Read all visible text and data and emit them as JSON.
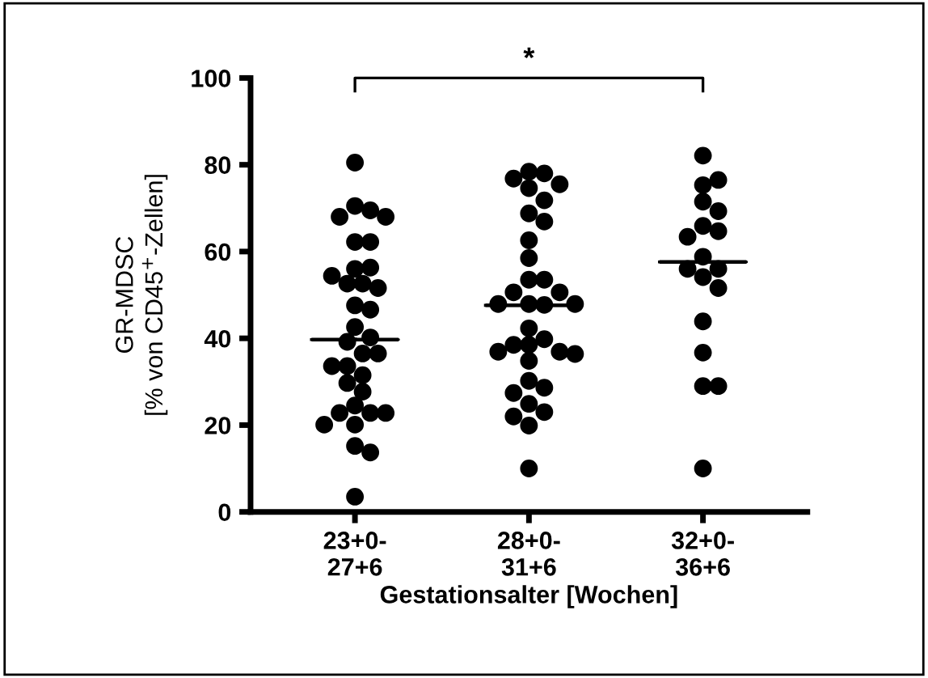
{
  "chart_data": {
    "type": "scatter",
    "xlabel": "Gestationsalter [Wochen]",
    "ylabel": "GR-MDSC\n[% von CD45$^{+}$-Zellen]",
    "categories": [
      "23+0-\n27+6",
      "28+0-\n31+6",
      "32+0-\n36+6"
    ],
    "ylim": [
      0,
      100
    ],
    "yticks": [
      0,
      20,
      40,
      60,
      80,
      100
    ],
    "grid": false,
    "legend": false,
    "marker": "circle",
    "annotations": [
      "*"
    ],
    "series": [
      {
        "color": "#000000",
        "x": [
          "23+0-\n27+6",
          "23+0-\n27+6",
          "23+0-\n27+6",
          "23+0-\n27+6",
          "23+0-\n27+6",
          "23+0-\n27+6",
          "23+0-\n27+6",
          "23+0-\n27+6",
          "23+0-\n27+6",
          "23+0-\n27+6",
          "23+0-\n27+6",
          "23+0-\n27+6",
          "23+0-\n27+6",
          "23+0-\n27+6",
          "23+0-\n27+6",
          "23+0-\n27+6",
          "23+0-\n27+6",
          "23+0-\n27+6",
          "23+0-\n27+6",
          "23+0-\n27+6",
          "23+0-\n27+6",
          "23+0-\n27+6",
          "23+0-\n27+6",
          "23+0-\n27+6",
          "23+0-\n27+6",
          "23+0-\n27+6",
          "23+0-\n27+6",
          "23+0-\n27+6",
          "23+0-\n27+6",
          "23+0-\n27+6",
          "23+0-\n27+6",
          "23+0-\n27+6",
          "23+0-\n27+6",
          "23+0-\n27+6"
        ],
        "values": [
          80.5,
          70.5,
          69.5,
          68,
          68,
          62.2,
          62.2,
          56,
          56.3,
          52.6,
          52.6,
          54.4,
          51.6,
          47.6,
          46.6,
          42.6,
          40.2,
          39.2,
          36.5,
          36.5,
          33.6,
          33.6,
          31.5,
          29.7,
          27.7,
          24.5,
          22.8,
          22.8,
          22.8,
          20.1,
          20.1,
          15.2,
          13.7,
          3.5
        ]
      },
      {
        "color": "#000000",
        "x": [
          "28+0-\n31+6",
          "28+0-\n31+6",
          "28+0-\n31+6",
          "28+0-\n31+6",
          "28+0-\n31+6",
          "28+0-\n31+6",
          "28+0-\n31+6",
          "28+0-\n31+6",
          "28+0-\n31+6",
          "28+0-\n31+6",
          "28+0-\n31+6",
          "28+0-\n31+6",
          "28+0-\n31+6",
          "28+0-\n31+6",
          "28+0-\n31+6",
          "28+0-\n31+6",
          "28+0-\n31+6",
          "28+0-\n31+6",
          "28+0-\n31+6",
          "28+0-\n31+6",
          "28+0-\n31+6",
          "28+0-\n31+6",
          "28+0-\n31+6",
          "28+0-\n31+6",
          "28+0-\n31+6",
          "28+0-\n31+6",
          "28+0-\n31+6",
          "28+0-\n31+6",
          "28+0-\n31+6",
          "28+0-\n31+6",
          "28+0-\n31+6",
          "28+0-\n31+6",
          "28+0-\n31+6",
          "28+0-\n31+6"
        ],
        "values": [
          78.4,
          78,
          76.8,
          75.5,
          74.6,
          71.8,
          68.8,
          66.9,
          62.6,
          58.5,
          53.5,
          53.5,
          50.6,
          50.6,
          47.9,
          47.7,
          47.9,
          47.9,
          42.3,
          39.8,
          38.5,
          38.5,
          36.9,
          36.9,
          36.4,
          34.8,
          30.2,
          28.6,
          27.4,
          24.9,
          23,
          22,
          19.9,
          10
        ]
      },
      {
        "color": "#000000",
        "x": [
          "32+0-\n36+6",
          "32+0-\n36+6",
          "32+0-\n36+6",
          "32+0-\n36+6",
          "32+0-\n36+6",
          "32+0-\n36+6",
          "32+0-\n36+6",
          "32+0-\n36+6",
          "32+0-\n36+6",
          "32+0-\n36+6",
          "32+0-\n36+6",
          "32+0-\n36+6",
          "32+0-\n36+6",
          "32+0-\n36+6",
          "32+0-\n36+6",
          "32+0-\n36+6",
          "32+0-\n36+6",
          "32+0-\n36+6"
        ],
        "values": [
          82.1,
          75.3,
          76.5,
          71.5,
          69.3,
          65.9,
          64.7,
          63.4,
          58.8,
          56,
          56,
          54.1,
          51.6,
          43.9,
          36.7,
          29,
          29,
          10
        ]
      },
      {
        "type": "box",
        "color": "#000000",
        "boxes": [
          {
            "low": 39.7,
            "q1": 39.7,
            "median": 39.7,
            "q3": 39.7,
            "high": 39.7
          },
          {
            "low": 47.6,
            "q1": 47.6,
            "median": 47.6,
            "q3": 47.6,
            "high": 47.6
          },
          {
            "low": 57.6,
            "q1": 57.6,
            "median": 57.6,
            "q3": 57.6,
            "high": 57.6
          }
        ]
      }
    ]
  }
}
